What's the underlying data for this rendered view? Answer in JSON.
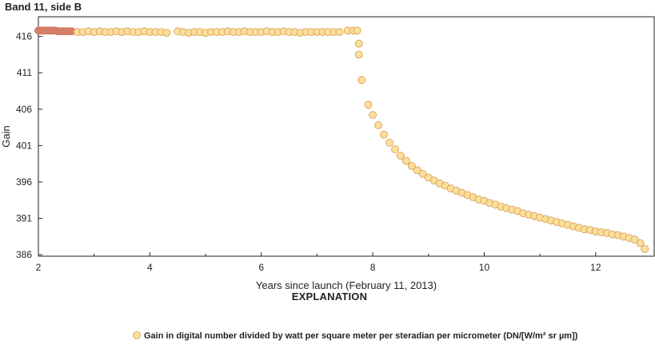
{
  "chart_data": {
    "type": "scatter",
    "title": "Band 11, side B",
    "xlabel": "Years since launch (February 11, 2013)",
    "ylabel": "Gain",
    "xlim": [
      2,
      13.05
    ],
    "ylim": [
      385.8,
      418.7
    ],
    "xticks": [
      2,
      4,
      6,
      8,
      10,
      12
    ],
    "yticks": [
      386,
      391,
      396,
      401,
      406,
      411,
      416
    ],
    "grid": false,
    "legend_title": "EXPLANATION",
    "legend_placement": "bottom-center",
    "series": [
      {
        "name": "Gain in digital number divided by watt per square meter per steradian per micrometer (DN/[W/m² sr µm])",
        "points": [
          [
            2.0,
            416.8
          ],
          [
            2.05,
            416.8
          ],
          [
            2.1,
            416.8
          ],
          [
            2.15,
            416.8
          ],
          [
            2.2,
            416.8
          ],
          [
            2.25,
            416.8
          ],
          [
            2.3,
            416.8
          ],
          [
            2.35,
            416.7
          ],
          [
            2.4,
            416.7
          ],
          [
            2.45,
            416.7
          ],
          [
            2.5,
            416.7
          ],
          [
            2.55,
            416.7
          ],
          [
            2.6,
            416.7
          ],
          [
            2.7,
            416.6
          ],
          [
            2.8,
            416.6
          ],
          [
            2.9,
            416.7
          ],
          [
            3.0,
            416.6
          ],
          [
            3.1,
            416.7
          ],
          [
            3.2,
            416.6
          ],
          [
            3.3,
            416.6
          ],
          [
            3.4,
            416.7
          ],
          [
            3.5,
            416.6
          ],
          [
            3.6,
            416.7
          ],
          [
            3.7,
            416.6
          ],
          [
            3.8,
            416.6
          ],
          [
            3.9,
            416.7
          ],
          [
            4.0,
            416.6
          ],
          [
            4.1,
            416.6
          ],
          [
            4.2,
            416.6
          ],
          [
            4.3,
            416.5
          ],
          [
            4.5,
            416.7
          ],
          [
            4.6,
            416.6
          ],
          [
            4.7,
            416.5
          ],
          [
            4.8,
            416.6
          ],
          [
            4.9,
            416.6
          ],
          [
            5.0,
            416.5
          ],
          [
            5.1,
            416.6
          ],
          [
            5.2,
            416.6
          ],
          [
            5.3,
            416.6
          ],
          [
            5.4,
            416.7
          ],
          [
            5.5,
            416.6
          ],
          [
            5.6,
            416.6
          ],
          [
            5.7,
            416.7
          ],
          [
            5.8,
            416.6
          ],
          [
            5.9,
            416.6
          ],
          [
            6.0,
            416.6
          ],
          [
            6.1,
            416.7
          ],
          [
            6.2,
            416.6
          ],
          [
            6.3,
            416.6
          ],
          [
            6.4,
            416.7
          ],
          [
            6.5,
            416.6
          ],
          [
            6.6,
            416.6
          ],
          [
            6.7,
            416.5
          ],
          [
            6.8,
            416.6
          ],
          [
            6.9,
            416.6
          ],
          [
            7.0,
            416.6
          ],
          [
            7.1,
            416.6
          ],
          [
            7.2,
            416.6
          ],
          [
            7.3,
            416.6
          ],
          [
            7.4,
            416.6
          ],
          [
            7.55,
            416.8
          ],
          [
            7.65,
            416.8
          ],
          [
            7.72,
            416.8
          ],
          [
            7.75,
            415.0
          ],
          [
            7.75,
            413.5
          ],
          [
            7.8,
            410.0
          ],
          [
            7.92,
            406.6
          ],
          [
            8.0,
            405.2
          ],
          [
            8.1,
            403.8
          ],
          [
            8.2,
            402.5
          ],
          [
            8.3,
            401.4
          ],
          [
            8.4,
            400.5
          ],
          [
            8.5,
            399.6
          ],
          [
            8.6,
            398.9
          ],
          [
            8.7,
            398.2
          ],
          [
            8.8,
            397.6
          ],
          [
            8.9,
            397.1
          ],
          [
            9.0,
            396.6
          ],
          [
            9.1,
            396.2
          ],
          [
            9.2,
            395.8
          ],
          [
            9.3,
            395.5
          ],
          [
            9.4,
            395.1
          ],
          [
            9.5,
            394.8
          ],
          [
            9.6,
            394.5
          ],
          [
            9.7,
            394.2
          ],
          [
            9.8,
            393.9
          ],
          [
            9.9,
            393.6
          ],
          [
            10.0,
            393.4
          ],
          [
            10.1,
            393.1
          ],
          [
            10.2,
            392.9
          ],
          [
            10.3,
            392.6
          ],
          [
            10.4,
            392.4
          ],
          [
            10.5,
            392.2
          ],
          [
            10.6,
            392.0
          ],
          [
            10.7,
            391.7
          ],
          [
            10.8,
            391.5
          ],
          [
            10.9,
            391.3
          ],
          [
            11.0,
            391.1
          ],
          [
            11.1,
            390.9
          ],
          [
            11.2,
            390.7
          ],
          [
            11.3,
            390.5
          ],
          [
            11.4,
            390.3
          ],
          [
            11.5,
            390.1
          ],
          [
            11.6,
            389.9
          ],
          [
            11.7,
            389.7
          ],
          [
            11.8,
            389.5
          ],
          [
            11.9,
            389.4
          ],
          [
            12.0,
            389.2
          ],
          [
            12.1,
            389.1
          ],
          [
            12.2,
            389.0
          ],
          [
            12.3,
            388.8
          ],
          [
            12.4,
            388.7
          ],
          [
            12.5,
            388.5
          ],
          [
            12.6,
            388.3
          ],
          [
            12.7,
            388.1
          ],
          [
            12.8,
            387.6
          ],
          [
            12.88,
            386.8
          ]
        ]
      }
    ]
  },
  "colors": {
    "marker_fill": "#fbdf9a",
    "marker_stroke": "#d79a4e",
    "early_marker_fill": "#d9836b",
    "early_marker_stroke": "#c87058",
    "axis": "#231f20",
    "text": "#231f20"
  }
}
